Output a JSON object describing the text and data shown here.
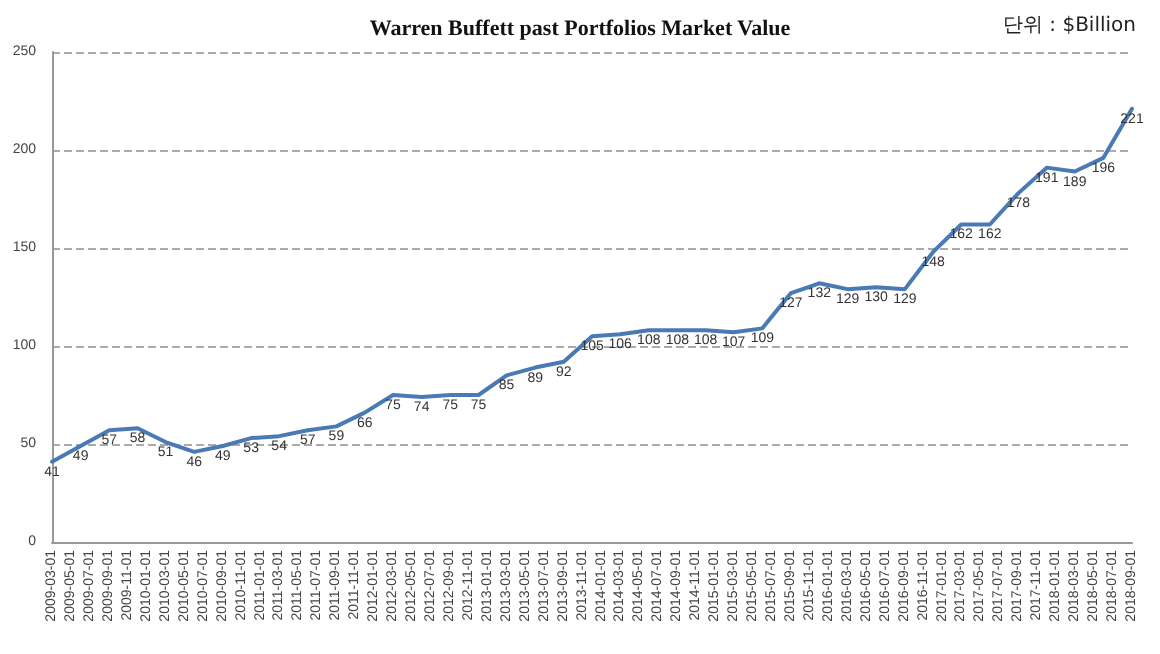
{
  "chart_data": {
    "type": "line",
    "title": "Warren Buffett past Portfolios Market Value",
    "annotations": [
      "단위 : $Billion"
    ],
    "x": [
      "2009-03-01",
      "2009-06-01",
      "2009-09-01",
      "2009-12-01",
      "2010-03-01",
      "2010-06-01",
      "2010-09-01",
      "2010-12-01",
      "2011-03-01",
      "2011-06-01",
      "2011-09-01",
      "2011-12-01",
      "2012-03-01",
      "2012-06-01",
      "2012-09-01",
      "2012-12-01",
      "2013-03-01",
      "2013-06-01",
      "2013-09-01",
      "2013-12-01",
      "2014-03-01",
      "2014-06-01",
      "2014-09-01",
      "2014-12-01",
      "2015-03-01",
      "2015-06-01",
      "2015-09-01",
      "2015-12-01",
      "2016-03-01",
      "2016-06-01",
      "2016-09-01",
      "2016-12-01",
      "2017-03-01",
      "2017-06-01",
      "2017-09-01",
      "2017-12-01",
      "2018-03-01",
      "2018-06-01",
      "2018-09-01"
    ],
    "series": [
      {
        "color": "#4a7ab5",
        "values": [
          41,
          49,
          57,
          58,
          51,
          46,
          49,
          53,
          54,
          57,
          59,
          66,
          75,
          74,
          75,
          75,
          85,
          89,
          92,
          105,
          106,
          108,
          108,
          108,
          107,
          109,
          127,
          132,
          129,
          130,
          129,
          148,
          162,
          162,
          178,
          191,
          189,
          196,
          221
        ]
      }
    ],
    "xlim": [
      "2009-03-01",
      "2018-09-01"
    ],
    "xticks": [
      "2009-03-01",
      "2009-05-01",
      "2009-07-01",
      "2009-09-01",
      "2009-11-01",
      "2010-01-01",
      "2010-03-01",
      "2010-05-01",
      "2010-07-01",
      "2010-09-01",
      "2010-11-01",
      "2011-01-01",
      "2011-03-01",
      "2011-05-01",
      "2011-07-01",
      "2011-09-01",
      "2011-11-01",
      "2012-01-01",
      "2012-03-01",
      "2012-05-01",
      "2012-07-01",
      "2012-09-01",
      "2012-11-01",
      "2013-01-01",
      "2013-03-01",
      "2013-05-01",
      "2013-07-01",
      "2013-09-01",
      "2013-11-01",
      "2014-01-01",
      "2014-03-01",
      "2014-05-01",
      "2014-07-01",
      "2014-09-01",
      "2014-11-01",
      "2015-01-01",
      "2015-03-01",
      "2015-05-01",
      "2015-07-01",
      "2015-09-01",
      "2015-11-01",
      "2016-01-01",
      "2016-03-01",
      "2016-05-01",
      "2016-07-01",
      "2016-09-01",
      "2016-11-01",
      "2017-01-01",
      "2017-03-01",
      "2017-05-01",
      "2017-07-01",
      "2017-09-01",
      "2017-11-01",
      "2018-01-01",
      "2018-03-01",
      "2018-05-01",
      "2018-07-01",
      "2018-09-01"
    ],
    "ylim": [
      0,
      250
    ],
    "yticks": [
      0,
      50,
      100,
      150,
      200,
      250
    ],
    "grid": "y",
    "data_labels": true,
    "marker": "none",
    "line_style": "solid"
  }
}
